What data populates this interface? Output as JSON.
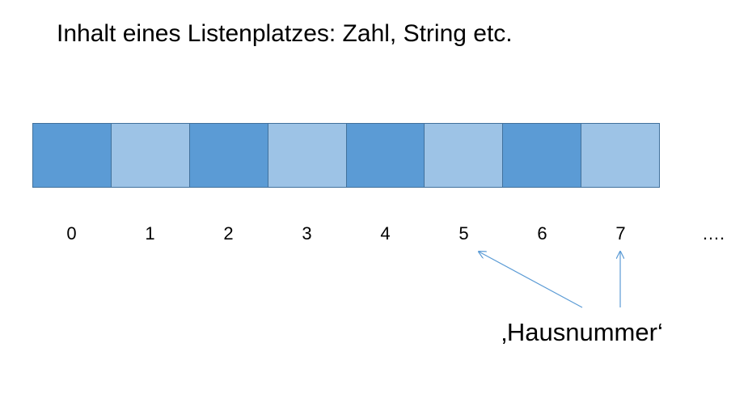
{
  "title": "Inhalt eines Listenplatzes: Zahl, String etc.",
  "cells": [
    {
      "shade": "dark"
    },
    {
      "shade": "light"
    },
    {
      "shade": "dark"
    },
    {
      "shade": "light"
    },
    {
      "shade": "dark"
    },
    {
      "shade": "light"
    },
    {
      "shade": "dark"
    },
    {
      "shade": "light"
    }
  ],
  "indices": [
    "0",
    "1",
    "2",
    "3",
    "4",
    "5",
    "6",
    "7"
  ],
  "ellipsis": "….",
  "label": "‚Hausnummer‘",
  "colors": {
    "dark_cell": "#5b9bd5",
    "light_cell": "#9dc3e6",
    "cell_border": "#41719c",
    "arrow": "#5b9bd5"
  }
}
